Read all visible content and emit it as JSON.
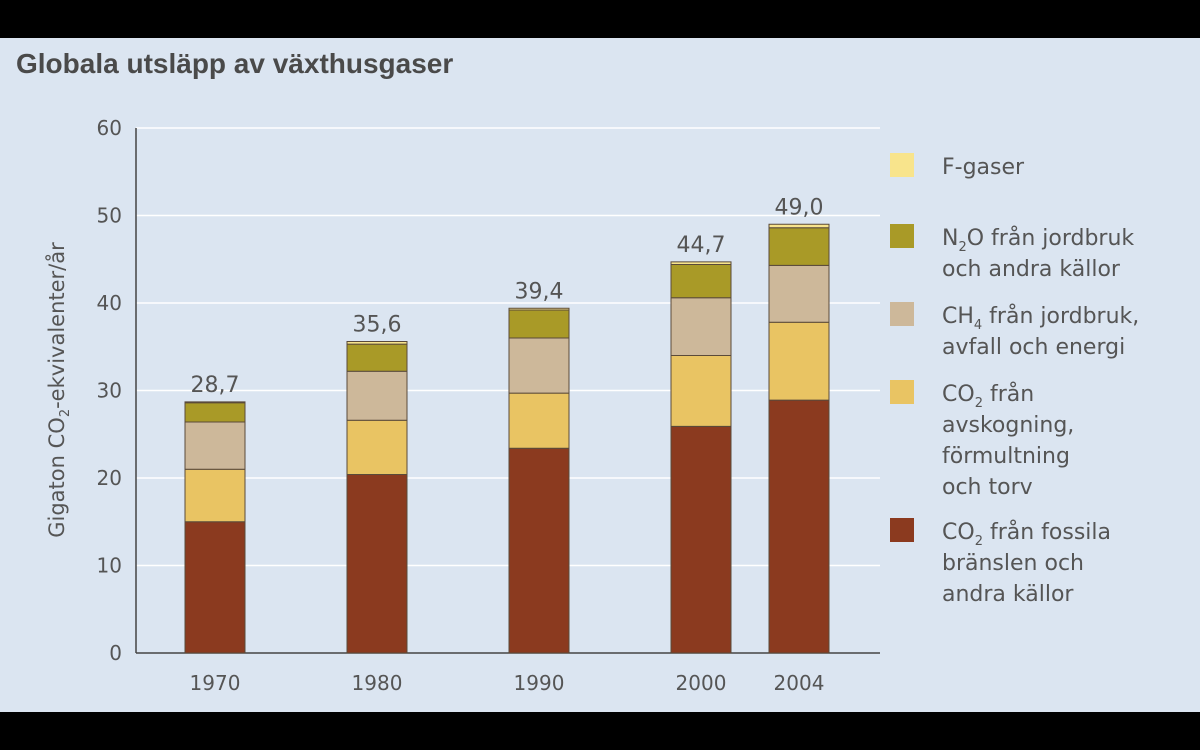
{
  "chart_data": {
    "type": "bar",
    "stacked": true,
    "title": "Globala utsläpp av växthusgaser",
    "ylabel_parts": [
      "Gigaton CO",
      "2",
      "-ekvivalenter/år"
    ],
    "ylim": [
      0,
      60
    ],
    "yticks": [
      "0",
      "10",
      "20",
      "30",
      "40",
      "50",
      "60"
    ],
    "grid": true,
    "legend_position": "right",
    "categories": [
      "1970",
      "1980",
      "1990",
      "2000",
      "2004"
    ],
    "totals": [
      "28,7",
      "35,6",
      "39,4",
      "44,7",
      "49,0"
    ],
    "series": [
      {
        "key": "co2_fossil",
        "name_parts": [
          "CO",
          "2",
          " från fossila",
          "bränslen och",
          "andra källor"
        ],
        "color": "#8b3a1f",
        "values": [
          15.0,
          20.4,
          23.4,
          25.9,
          28.9
        ]
      },
      {
        "key": "co2_deforestation",
        "name_parts": [
          "CO",
          "2",
          " från",
          "avskogning,",
          "förmultning",
          "och torv"
        ],
        "color": "#e9c463",
        "values": [
          6.0,
          6.2,
          6.3,
          8.1,
          8.9
        ]
      },
      {
        "key": "ch4",
        "name_parts": [
          "CH",
          "4",
          " från jordbruk,",
          "avfall och energi"
        ],
        "color": "#cdb89a",
        "values": [
          5.4,
          5.6,
          6.3,
          6.6,
          6.5
        ]
      },
      {
        "key": "n2o",
        "name_parts": [
          "N",
          "2",
          "O från jordbruk",
          "och andra källor"
        ],
        "color": "#a99a27",
        "values": [
          2.2,
          3.1,
          3.2,
          3.8,
          4.3
        ]
      },
      {
        "key": "fgases",
        "name_parts": [
          "F-gaser"
        ],
        "color": "#f8e48c",
        "values": [
          0.1,
          0.3,
          0.2,
          0.3,
          0.4
        ]
      }
    ]
  }
}
